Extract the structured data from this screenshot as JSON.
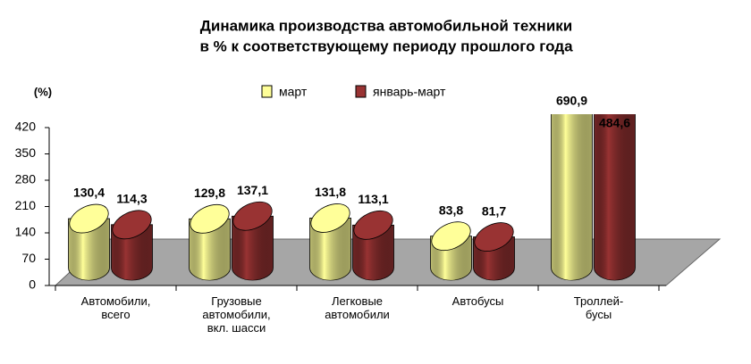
{
  "chart_data": {
    "type": "bar",
    "title": "Динамика производства автомобильной техники",
    "subtitle": "в %  к соответствующему  периоду прошлого года",
    "y_label": "(%)",
    "categories": [
      "Автомобили,\nвсего",
      "Грузовые\nавтомобили,\nвкл. шасси",
      "Легковые\nавтомобили",
      "Автобусы",
      "Троллей-\nбусы"
    ],
    "series": [
      {
        "name": "март",
        "color": "#ffff99",
        "values": [
          130.4,
          129.8,
          131.8,
          83.8,
          690.9
        ],
        "value_labels": [
          "130,4",
          "129,8",
          "131,8",
          "83,8",
          "690,9"
        ]
      },
      {
        "name": "январь-март",
        "color": "#993333",
        "values": [
          114.3,
          137.1,
          113.1,
          81.7,
          484.6
        ],
        "value_labels": [
          "114,3",
          "137,1",
          "113,1",
          "81,7",
          "484,6"
        ]
      }
    ],
    "ylim": [
      0,
      420
    ],
    "yticks": [
      0,
      70,
      140,
      210,
      280,
      350,
      420
    ],
    "legend": "top"
  }
}
